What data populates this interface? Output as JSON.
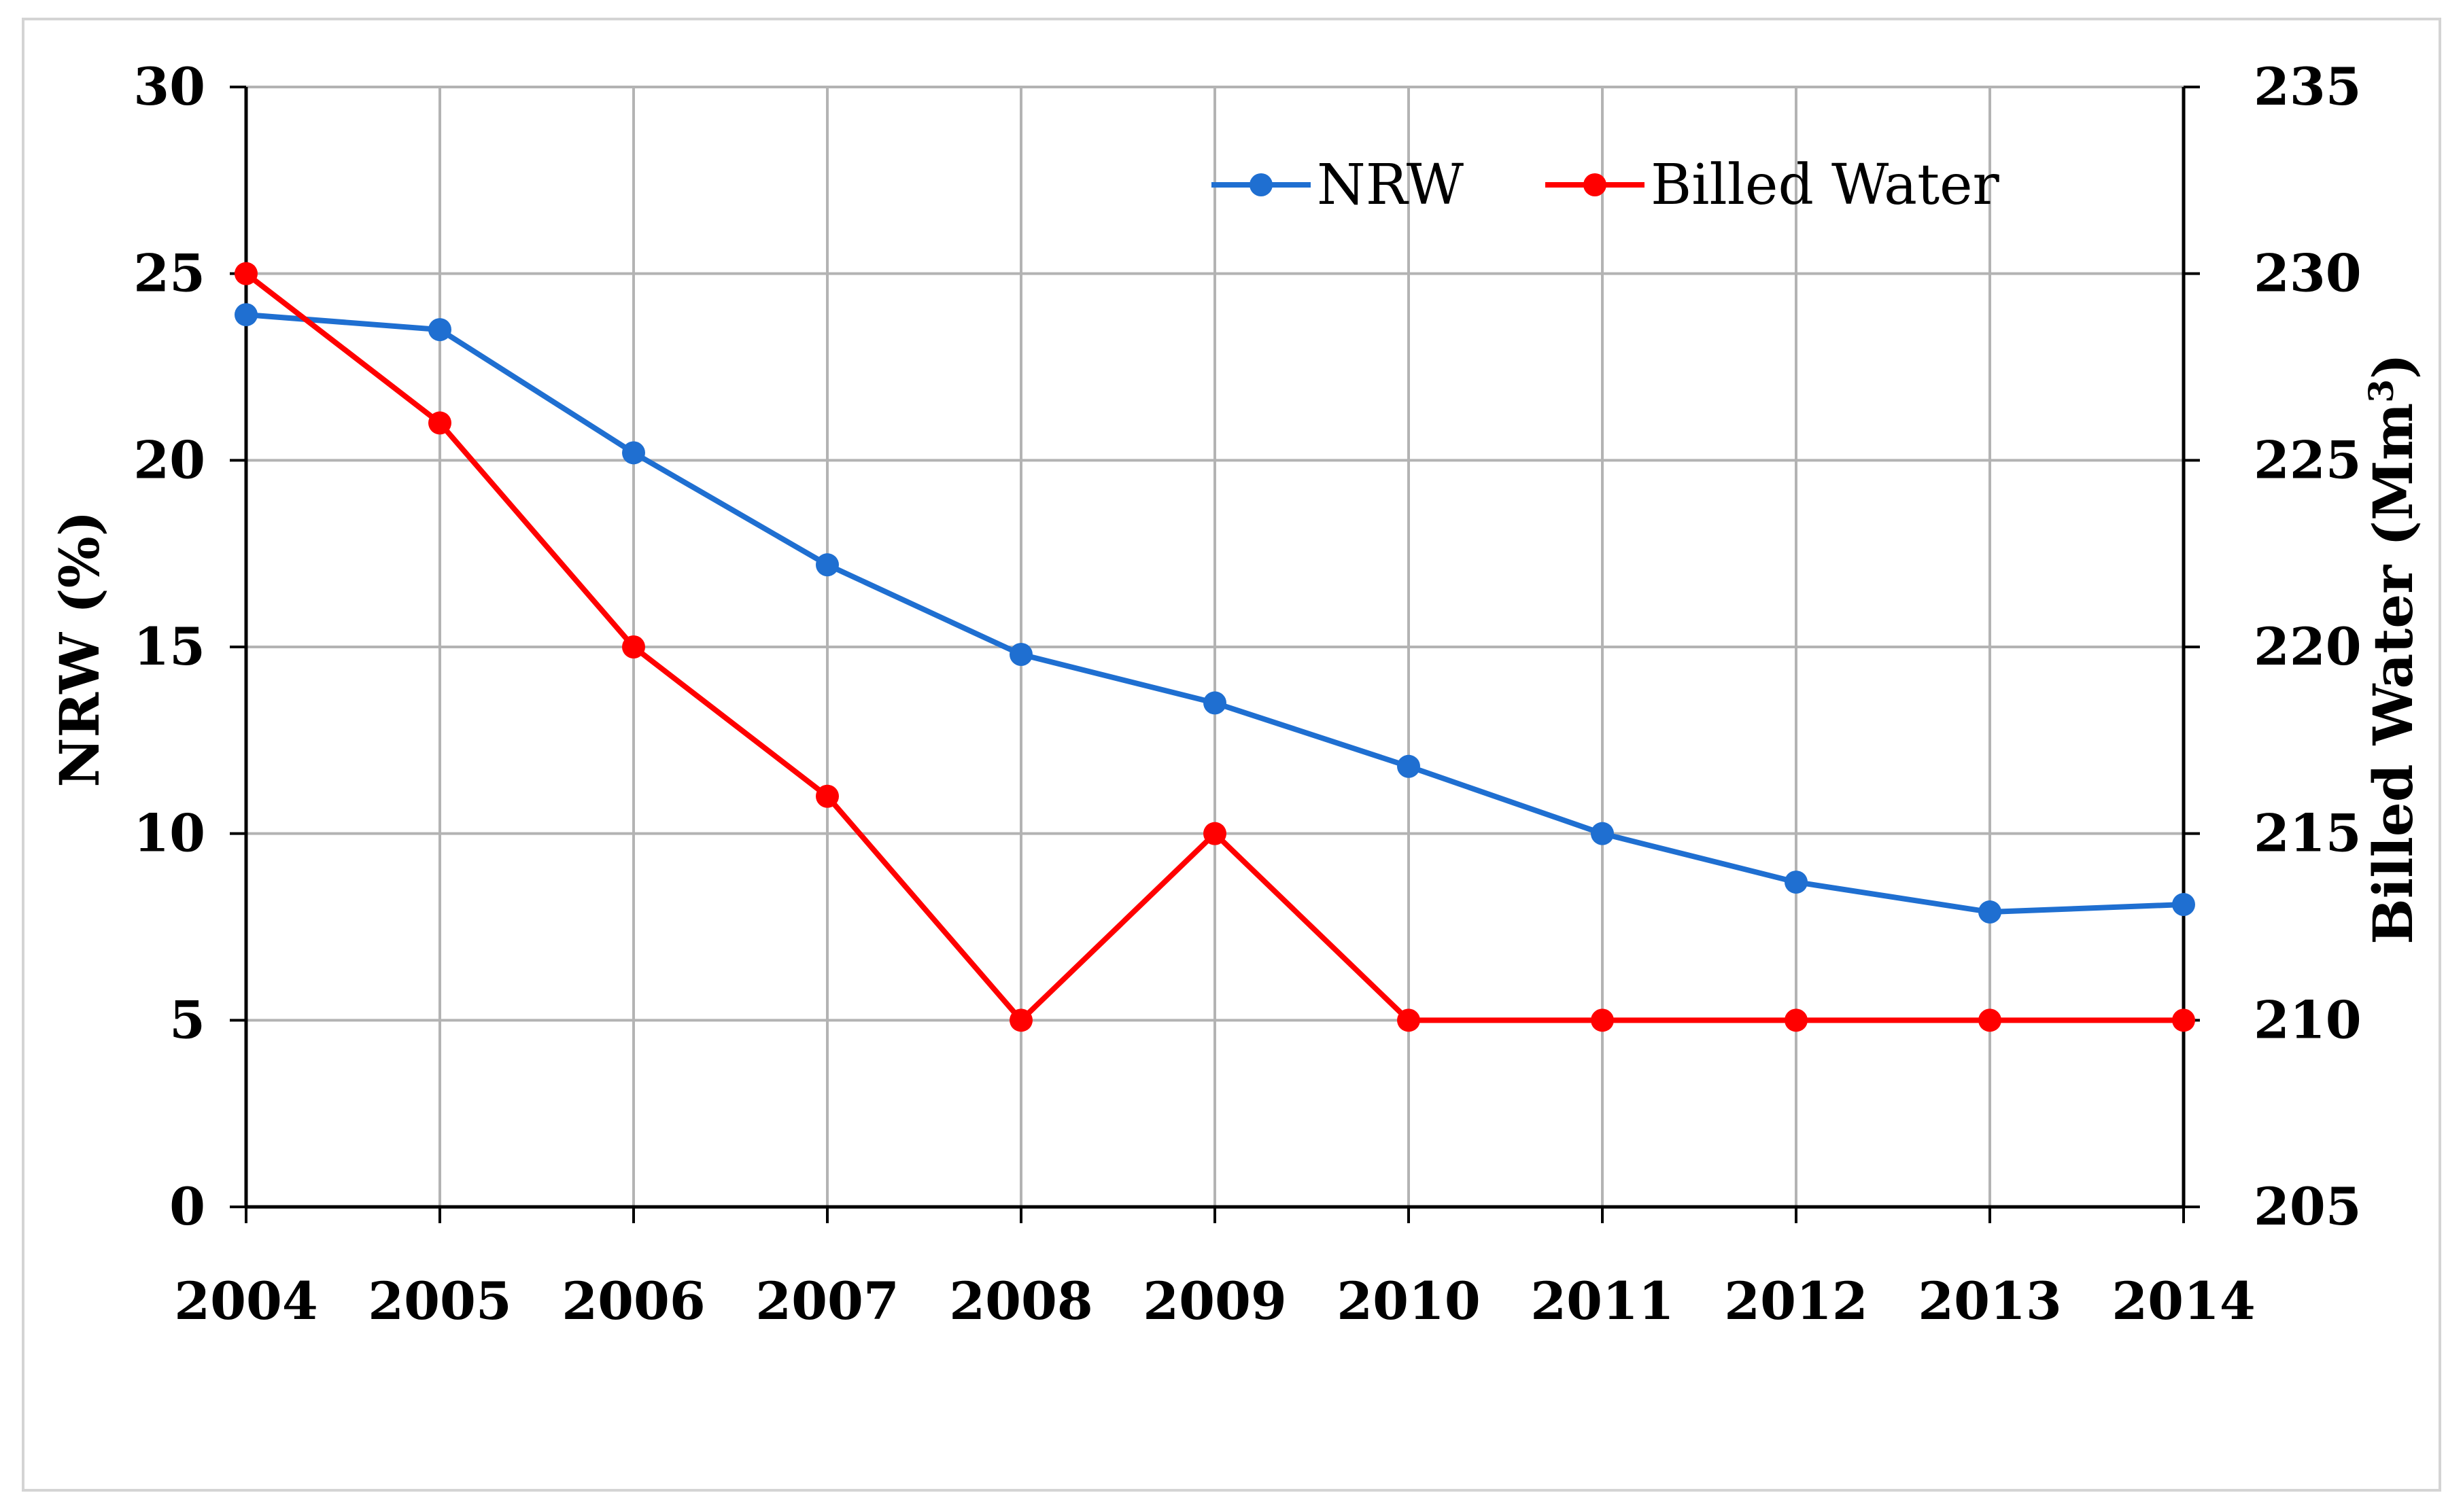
{
  "chart_data": {
    "type": "line",
    "categories": [
      "2004",
      "2005",
      "2006",
      "2007",
      "2008",
      "2009",
      "2010",
      "2011",
      "2012",
      "2013",
      "2014"
    ],
    "series": [
      {
        "name": "NRW",
        "axis": "left",
        "color": "#1f6fd1",
        "values": [
          23.9,
          23.5,
          20.2,
          17.2,
          14.8,
          13.5,
          11.8,
          10.0,
          8.7,
          7.9,
          8.1
        ]
      },
      {
        "name": "Billed Water",
        "axis": "right",
        "color": "#ff0000",
        "values": [
          230,
          226,
          220,
          216,
          210,
          215,
          210,
          210,
          210,
          210,
          210
        ]
      }
    ],
    "y_left": {
      "label": "NRW (%)",
      "min": 0,
      "max": 30,
      "ticks": [
        "0",
        "5",
        "10",
        "15",
        "20",
        "25",
        "30"
      ]
    },
    "y_right": {
      "label_main": "Billed Water (Mm",
      "label_sup": "3",
      "label_end": ")",
      "min": 205,
      "max": 235,
      "ticks": [
        "205",
        "210",
        "215",
        "220",
        "225",
        "230",
        "235"
      ]
    },
    "grid": true,
    "legend_position": "top-right",
    "legend": [
      "NRW",
      "Billed Water"
    ]
  }
}
